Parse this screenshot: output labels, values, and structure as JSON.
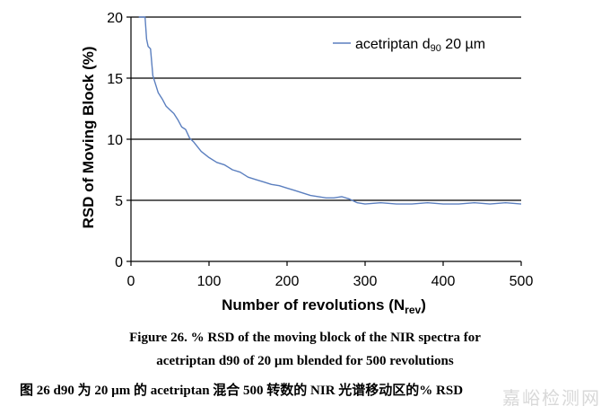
{
  "chart_data": {
    "type": "line",
    "ylabel": "RSD of Moving Block (%)",
    "xlabel_main": "Number of revolutions (N",
    "xlabel_sub": "rev",
    "xlabel_close": ")",
    "xlim": [
      0,
      500
    ],
    "ylim": [
      0,
      20
    ],
    "x_ticks": [
      "0",
      "100",
      "200",
      "300",
      "400",
      "500"
    ],
    "y_ticks": [
      "0",
      "5",
      "10",
      "15",
      "20"
    ],
    "gridlines_y": [
      5,
      10,
      15,
      20
    ],
    "legend_position": "top-right",
    "series": [
      {
        "name": "acetriptan d90 20 µm",
        "color": "#5b7fbf",
        "x": [
          10,
          12,
          15,
          18,
          20,
          22,
          25,
          28,
          30,
          35,
          40,
          45,
          50,
          55,
          60,
          65,
          70,
          75,
          80,
          90,
          100,
          110,
          120,
          130,
          140,
          150,
          160,
          170,
          180,
          190,
          200,
          210,
          220,
          230,
          240,
          250,
          260,
          270,
          280,
          290,
          300,
          320,
          340,
          360,
          380,
          400,
          420,
          440,
          460,
          480,
          500
        ],
        "values": [
          20,
          20,
          20,
          20,
          18.2,
          17.6,
          17.4,
          15.2,
          14.8,
          13.8,
          13.3,
          12.7,
          12.4,
          12.1,
          11.6,
          11.0,
          10.8,
          10.1,
          9.8,
          9.0,
          8.5,
          8.1,
          7.9,
          7.5,
          7.3,
          6.9,
          6.7,
          6.5,
          6.3,
          6.2,
          6.0,
          5.8,
          5.6,
          5.4,
          5.3,
          5.2,
          5.2,
          5.3,
          5.1,
          4.8,
          4.7,
          4.8,
          4.7,
          4.7,
          4.8,
          4.7,
          4.7,
          4.8,
          4.7,
          4.8,
          4.7
        ]
      }
    ]
  },
  "legend": {
    "label_main": "acetriptan d",
    "label_sub": "90",
    "label_rest": " 20 µm"
  },
  "captions": {
    "line1": "Figure 26. % RSD of the moving block of the NIR spectra for",
    "line2": "acetriptan d90 of 20 µm blended for 500 revolutions",
    "line3": "图 26    d90 为 20 µm 的 acetriptan 混合 500 转数的 NIR 光谱移动区的% RSD"
  },
  "watermark": "嘉峪检测网"
}
